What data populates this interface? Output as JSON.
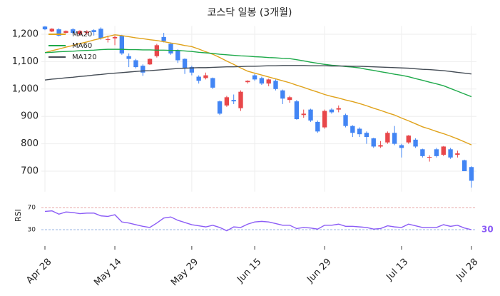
{
  "chart_data": [
    {
      "type": "candlestick",
      "title": "코스닥 일봉 (3개월)",
      "categories": [
        "Apr 28",
        null,
        null,
        null,
        null,
        null,
        null,
        null,
        null,
        null,
        "May 14",
        null,
        null,
        null,
        null,
        null,
        null,
        null,
        null,
        null,
        null,
        "May 29",
        null,
        null,
        null,
        null,
        null,
        null,
        null,
        null,
        "Jun 15",
        null,
        null,
        null,
        null,
        null,
        null,
        null,
        null,
        null,
        "Jun 29",
        null,
        null,
        null,
        null,
        null,
        null,
        null,
        null,
        null,
        null,
        "Jul 13",
        null,
        null,
        null,
        null,
        null,
        null,
        null,
        null,
        null,
        "Jul 28"
      ],
      "open": [
        1228,
        1210,
        1218,
        1205,
        1218,
        1200,
        1205,
        1215,
        1220,
        1180,
        1185,
        1195,
        1120,
        1105,
        1085,
        1090,
        1120,
        1190,
        1165,
        1140,
        1110,
        1080,
        1045,
        1040,
        1040,
        955,
        940,
        960,
        930,
        1025,
        1050,
        1040,
        1020,
        1030,
        995,
        960,
        955,
        905,
        925,
        880,
        860,
        925,
        925,
        905,
        865,
        855,
        840,
        820,
        790,
        805,
        840,
        795,
        805,
        815,
        780,
        750,
        780,
        760,
        780,
        760,
        740,
        715
      ],
      "high": [
        1230,
        1222,
        1222,
        1214,
        1222,
        1215,
        1215,
        1218,
        1225,
        1195,
        1195,
        1198,
        1130,
        1110,
        1090,
        1112,
        1165,
        1205,
        1170,
        1145,
        1112,
        1085,
        1050,
        1060,
        1042,
        958,
        975,
        980,
        995,
        1032,
        1055,
        1045,
        1038,
        1035,
        998,
        975,
        960,
        925,
        928,
        885,
        925,
        930,
        940,
        910,
        868,
        860,
        845,
        822,
        810,
        845,
        865,
        800,
        832,
        820,
        782,
        758,
        785,
        792,
        785,
        775,
        742,
        718
      ],
      "low": [
        1215,
        1208,
        1192,
        1203,
        1200,
        1195,
        1198,
        1195,
        1180,
        1170,
        1160,
        1125,
        1080,
        1075,
        1048,
        1088,
        1115,
        1170,
        1125,
        1095,
        1055,
        1050,
        1020,
        1035,
        1000,
        905,
        935,
        945,
        920,
        1020,
        1030,
        1015,
        1010,
        995,
        945,
        950,
        888,
        895,
        880,
        840,
        855,
        910,
        915,
        860,
        825,
        825,
        800,
        785,
        785,
        800,
        795,
        750,
        800,
        785,
        750,
        735,
        750,
        755,
        745,
        750,
        700,
        640
      ],
      "close": [
        1218,
        1220,
        1195,
        1212,
        1205,
        1212,
        1210,
        1208,
        1185,
        1182,
        1190,
        1130,
        1110,
        1080,
        1060,
        1110,
        1160,
        1175,
        1130,
        1105,
        1075,
        1060,
        1030,
        1050,
        1005,
        910,
        970,
        955,
        990,
        1030,
        1035,
        1020,
        1035,
        1000,
        965,
        970,
        890,
        910,
        885,
        845,
        920,
        915,
        930,
        865,
        840,
        835,
        825,
        790,
        795,
        840,
        800,
        785,
        830,
        790,
        755,
        752,
        755,
        790,
        750,
        765,
        700,
        665
      ],
      "up_color": "#e8474a",
      "down_color": "#4285f4",
      "series": [
        {
          "name": "MA20",
          "color": "#e0a21a",
          "values": [
            1133,
            1140,
            1146,
            1153,
            1159,
            1166,
            1172,
            1179,
            1185,
            1192,
            1198,
            1195,
            1191,
            1187,
            1184,
            1180,
            1177,
            1173,
            1168,
            1164,
            1159,
            1155,
            1146,
            1136,
            1127,
            1115,
            1102,
            1090,
            1077,
            1065,
            1058,
            1051,
            1044,
            1037,
            1030,
            1023,
            1014,
            1006,
            997,
            989,
            980,
            973,
            967,
            960,
            954,
            947,
            939,
            930,
            922,
            913,
            905,
            894,
            884,
            873,
            862,
            854,
            845,
            837,
            828,
            818,
            807,
            796
          ]
        },
        {
          "name": "MA60",
          "color": "#1ea94a",
          "values": [
            1133,
            1134,
            1136,
            1137,
            1138,
            1140,
            1141,
            1142,
            1144,
            1145,
            1145,
            1145,
            1144,
            1144,
            1143,
            1143,
            1142,
            1142,
            1141,
            1141,
            1139,
            1137,
            1134,
            1132,
            1130,
            1127,
            1125,
            1123,
            1121,
            1120,
            1118,
            1117,
            1115,
            1114,
            1112,
            1111,
            1107,
            1103,
            1098,
            1094,
            1090,
            1087,
            1085,
            1082,
            1080,
            1077,
            1072,
            1068,
            1063,
            1059,
            1054,
            1050,
            1045,
            1038,
            1032,
            1025,
            1019,
            1012,
            1002,
            992,
            982,
            972
          ]
        },
        {
          "name": "MA120",
          "color": "#444c55",
          "values": [
            1033,
            1036,
            1038,
            1041,
            1043,
            1046,
            1048,
            1051,
            1053,
            1056,
            1058,
            1060,
            1062,
            1064,
            1066,
            1067,
            1069,
            1071,
            1073,
            1075,
            1076,
            1077,
            1078,
            1078,
            1079,
            1080,
            1081,
            1081,
            1082,
            1083,
            1083,
            1084,
            1085,
            1085,
            1086,
            1086,
            1086,
            1086,
            1085,
            1085,
            1085,
            1084,
            1084,
            1084,
            1083,
            1083,
            1082,
            1081,
            1080,
            1079,
            1078,
            1077,
            1076,
            1074,
            1072,
            1071,
            1069,
            1067,
            1064,
            1061,
            1058,
            1055
          ]
        }
      ],
      "ylim": [
        625,
        1230
      ],
      "yticks": [
        700,
        800,
        900,
        {
          "value": 1000,
          "label": "1,000"
        },
        {
          "value": 1100,
          "label": "1,100"
        },
        {
          "value": 1200,
          "label": "1,200"
        }
      ],
      "grid": true,
      "legend": "upper left"
    },
    {
      "type": "line",
      "ylabel": "RSI",
      "color": "#8b5cf6",
      "values": [
        63,
        64,
        58,
        62,
        61,
        59,
        60,
        60,
        55,
        54,
        57,
        44,
        42,
        39,
        36,
        34,
        42,
        51,
        53,
        47,
        43,
        39,
        37,
        35,
        38,
        34,
        28,
        35,
        34,
        40,
        44,
        45,
        44,
        41,
        38,
        38,
        32,
        34,
        33,
        31,
        38,
        38,
        40,
        36,
        36,
        35,
        34,
        31,
        32,
        37,
        35,
        34,
        40,
        37,
        34,
        34,
        34,
        39,
        36,
        38,
        33,
        30
      ],
      "ylim": [
        10,
        80
      ],
      "yticks": [
        30,
        70
      ]
    }
  ]
}
